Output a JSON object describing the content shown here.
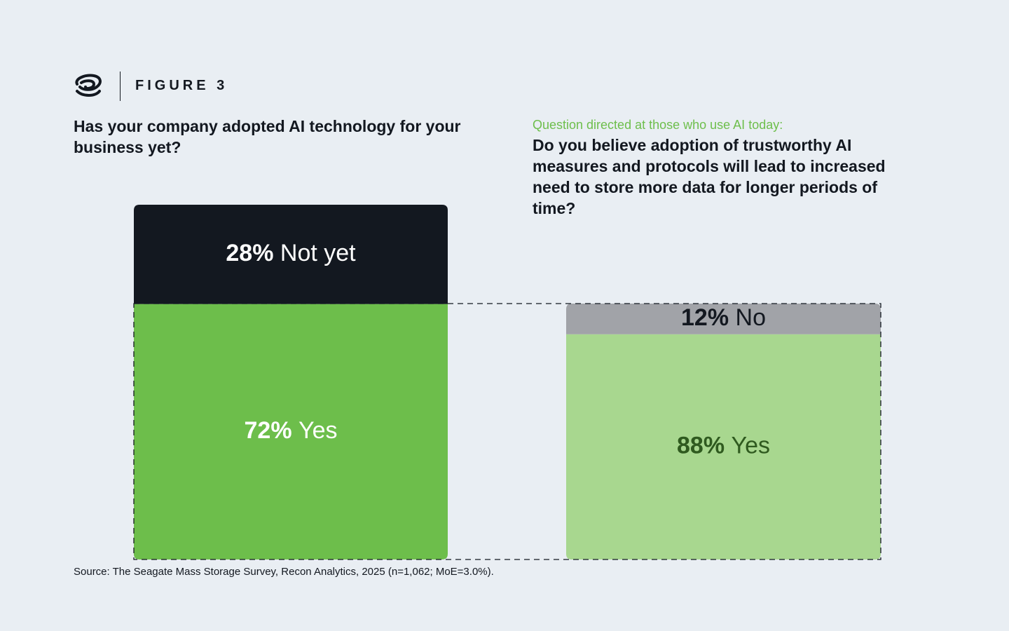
{
  "header": {
    "label": "FIGURE 3"
  },
  "source": "Source: The Seagate Mass Storage Survey, Recon Analytics, 2025 (n=1,062; MoE=3.0%).",
  "chart_data": [
    {
      "type": "stacked-bar",
      "title": "Has your company adopted AI technology for your business yet?",
      "categories": [
        "Yes",
        "Not yet"
      ],
      "values": [
        72,
        28
      ],
      "value_labels": [
        "72%",
        "28%"
      ],
      "colors": [
        "#6dbe4b",
        "#131820"
      ],
      "label_colors": [
        "#ffffff",
        "#ffffff"
      ]
    },
    {
      "type": "stacked-bar",
      "subtitle": "Question directed at those who use AI today:",
      "title": "Do you believe adoption of trustworthy AI measures and protocols will lead to increased need to store more data for longer periods of time?",
      "categories": [
        "Yes",
        "No"
      ],
      "values": [
        88,
        12
      ],
      "value_labels": [
        "88%",
        "12%"
      ],
      "colors": [
        "#a8d78f",
        "#a1a3a8"
      ],
      "label_colors": [
        "#2f5a1f",
        "#131820"
      ]
    }
  ]
}
